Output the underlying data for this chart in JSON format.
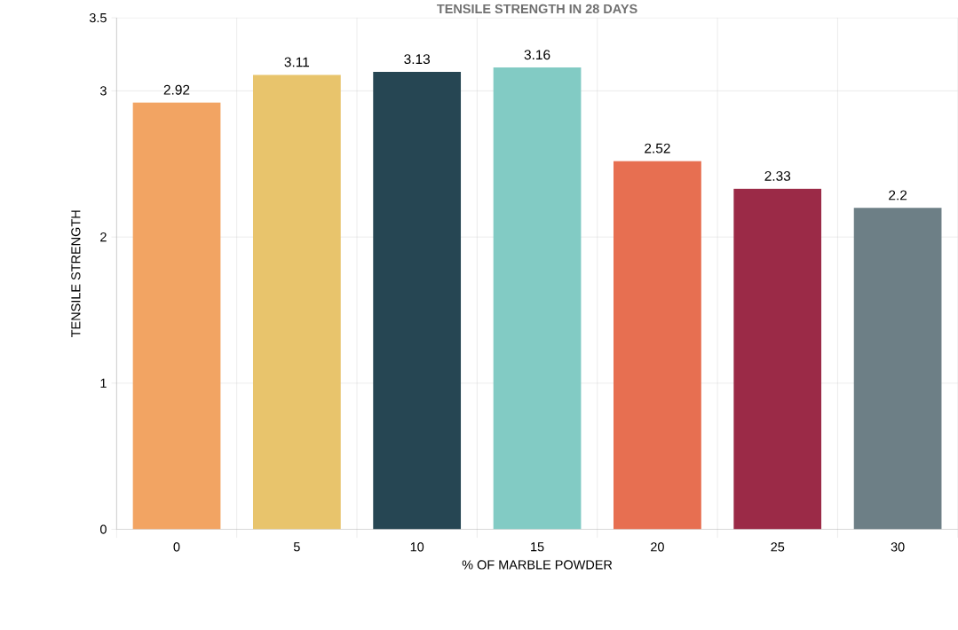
{
  "chart_data": {
    "type": "bar",
    "title": "TENSILE STRENGTH IN 28 DAYS",
    "xlabel": "% OF MARBLE POWDER",
    "ylabel": "TENSILE STRENGTH",
    "categories": [
      "0",
      "5",
      "10",
      "15",
      "20",
      "25",
      "30"
    ],
    "values": [
      2.92,
      3.11,
      3.13,
      3.16,
      2.52,
      2.33,
      2.2
    ],
    "colors": [
      "#f2a463",
      "#e8c46c",
      "#264653",
      "#82cbc4",
      "#e76f51",
      "#9b2a47",
      "#6d7f86"
    ],
    "ylim": [
      0,
      3.5
    ],
    "yticks": [
      0,
      1,
      2,
      3,
      3.5
    ],
    "grid": true,
    "data_labels": true
  }
}
